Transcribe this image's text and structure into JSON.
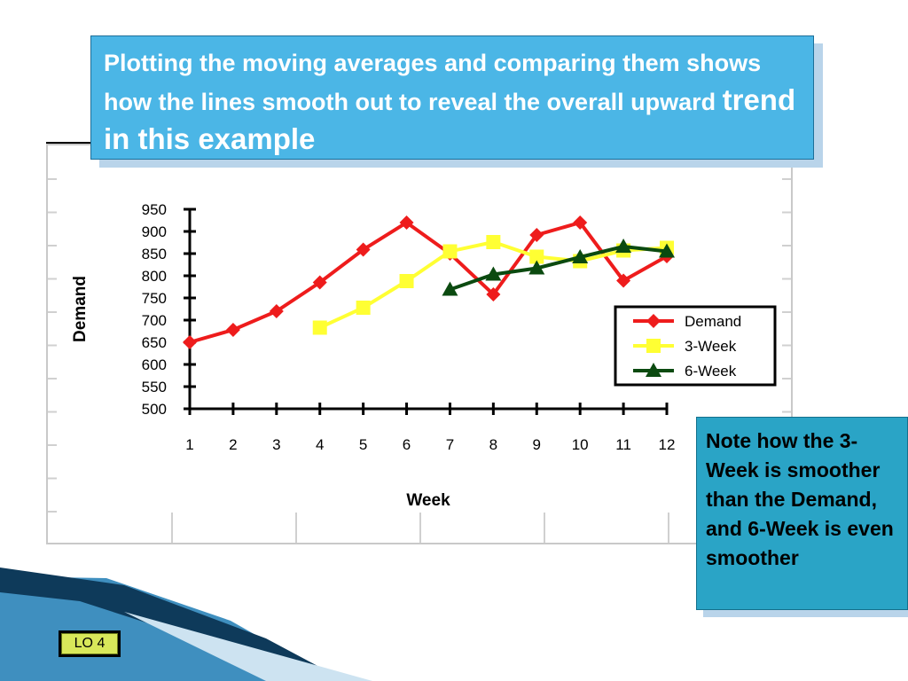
{
  "callout_title": {
    "line_part": "Plotting the moving averages and comparing them shows how the lines smooth out to reveal the overall upward",
    "big_part": "trend in this example"
  },
  "callout_note": {
    "text": "Note how the 3-Week is smoother than the Demand, and 6-Week is even smoother"
  },
  "badge": {
    "label": "LO 4"
  },
  "colors": {
    "demand": "#ee1c1c",
    "three_week": "#ffff33",
    "six_week": "#0b4a10",
    "title_box": "#4bb6e6",
    "note_box": "#2aa4c6"
  },
  "chart_data": {
    "type": "line",
    "xlabel": "Week",
    "ylabel": "Demand",
    "ylim": [
      500,
      950
    ],
    "yticks": [
      500,
      550,
      600,
      650,
      700,
      750,
      800,
      850,
      900,
      950
    ],
    "categories": [
      "1",
      "2",
      "3",
      "4",
      "5",
      "6",
      "7",
      "8",
      "9",
      "10",
      "11",
      "12"
    ],
    "legend_position": "right",
    "series": [
      {
        "name": "Demand",
        "marker": "diamond",
        "color": "#ee1c1c",
        "values": [
          650,
          678,
          720,
          785,
          859,
          920,
          850,
          758,
          892,
          920,
          789,
          844
        ]
      },
      {
        "name": "3-Week",
        "marker": "square",
        "color": "#ffff33",
        "values": [
          null,
          null,
          null,
          683,
          728,
          788,
          855,
          876,
          843,
          833,
          857,
          863
        ]
      },
      {
        "name": "6-Week",
        "marker": "triangle",
        "color": "#0b4a10",
        "values": [
          null,
          null,
          null,
          null,
          null,
          null,
          769,
          803,
          817,
          842,
          866,
          855
        ]
      }
    ]
  }
}
